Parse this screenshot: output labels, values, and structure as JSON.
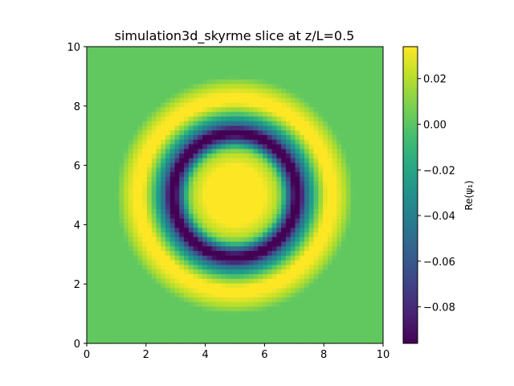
{
  "chart_data": {
    "type": "heatmap",
    "title": "simulation3d_skyrme slice at z/L=0.5",
    "xlabel": "",
    "ylabel": "",
    "xlim": [
      0,
      10
    ],
    "ylim": [
      0,
      10
    ],
    "x_ticks": [
      "0",
      "2",
      "4",
      "6",
      "8",
      "10"
    ],
    "y_ticks": [
      "0",
      "2",
      "4",
      "6",
      "8",
      "10"
    ],
    "grid": false,
    "colormap": "viridis",
    "colorbar": {
      "label": "Re(ψ₁)",
      "range": [
        -0.096,
        0.034
      ],
      "ticks": [
        "0.02",
        "0.00",
        "−0.02",
        "−0.04",
        "−0.06",
        "−0.08"
      ]
    },
    "field": {
      "grid_size": 64,
      "center": [
        5,
        5
      ],
      "radial_profile": {
        "r": [
          0.0,
          1.0,
          1.4,
          1.6,
          1.8,
          2.0,
          2.2,
          2.4,
          2.8,
          3.1,
          3.4,
          3.7,
          4.0,
          7.1
        ],
        "value": [
          0.034,
          0.034,
          0.02,
          0.0,
          -0.05,
          -0.096,
          -0.096,
          -0.05,
          0.005,
          0.034,
          0.034,
          0.02,
          0.002,
          0.002
        ]
      }
    }
  }
}
